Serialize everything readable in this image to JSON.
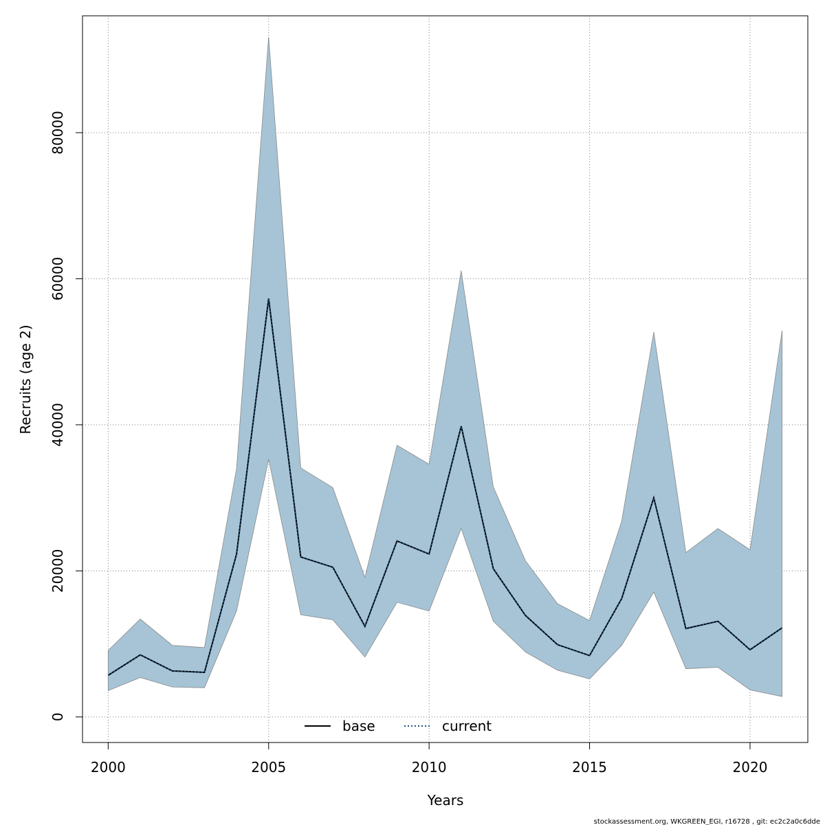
{
  "chart_data": {
    "type": "area",
    "xlabel": "Years",
    "ylabel": "Recruits (age 2)",
    "xlim": [
      1999.2,
      2021.8
    ],
    "ylim": [
      -3500,
      96000
    ],
    "grid": true,
    "legend_position": "bottom-center",
    "x_ticks": [
      2000,
      2005,
      2010,
      2015,
      2020
    ],
    "y_ticks": [
      0,
      20000,
      40000,
      60000,
      80000
    ],
    "x_tick_labels": [
      "2000",
      "2005",
      "2010",
      "2015",
      "2020"
    ],
    "y_tick_labels": [
      "0",
      "20000",
      "40000",
      "60000",
      "80000"
    ],
    "years": [
      2000,
      2001,
      2002,
      2003,
      2004,
      2005,
      2006,
      2007,
      2008,
      2009,
      2010,
      2011,
      2012,
      2013,
      2014,
      2015,
      2016,
      2017,
      2018,
      2019,
      2020,
      2021
    ],
    "series": [
      {
        "name": "base",
        "line_style": "solid",
        "color": "#000000",
        "values": [
          5700,
          8500,
          6300,
          6100,
          22300,
          57300,
          21900,
          20500,
          12400,
          24100,
          22300,
          39800,
          20300,
          13900,
          9900,
          8400,
          16200,
          30000,
          12100,
          13100,
          9200,
          12200
        ]
      },
      {
        "name": "current",
        "line_style": "dotted",
        "color": "#1f4e79",
        "values": [
          5700,
          8500,
          6300,
          6100,
          22300,
          57300,
          21900,
          20500,
          12400,
          24100,
          22300,
          39800,
          20300,
          13900,
          9900,
          8400,
          16200,
          30000,
          12100,
          13100,
          9200,
          12200
        ]
      }
    ],
    "confidence_band": {
      "fill_color": "#a6c4d6",
      "upper": [
        9100,
        13400,
        9800,
        9500,
        34000,
        93100,
        34100,
        31400,
        19100,
        37200,
        34600,
        61100,
        31500,
        21400,
        15500,
        13200,
        26800,
        52700,
        22500,
        25800,
        22900,
        52900
      ],
      "lower": [
        3600,
        5400,
        4100,
        4000,
        14500,
        35300,
        14000,
        13300,
        8200,
        15700,
        14500,
        25800,
        13100,
        8900,
        6400,
        5200,
        9800,
        17100,
        6600,
        6800,
        3700,
        2800
      ]
    },
    "legend": [
      {
        "label": "base",
        "line_style": "solid"
      },
      {
        "label": "current",
        "line_style": "dotted"
      }
    ]
  },
  "footer": "stockassessment.org, WKGREEN_EGI, r16728 , git: ec2c2a0c6dde"
}
